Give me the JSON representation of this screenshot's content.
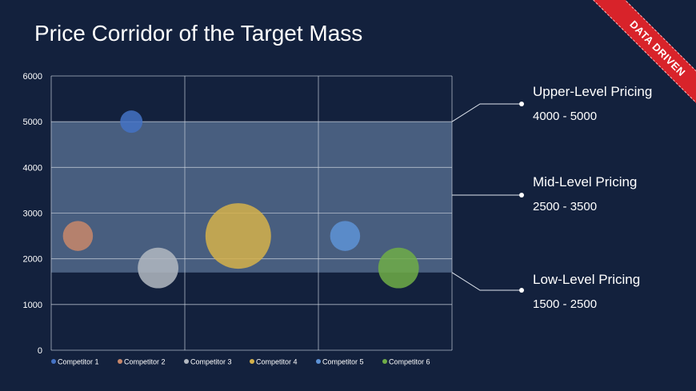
{
  "title": "Price Corridor of the Target Mass",
  "badge": "DATA DRIVEN",
  "colors": {
    "background": "#13213d",
    "band": "#5b7395",
    "ribbon": "#d8232a",
    "grid": "#c9d1dc"
  },
  "bands": [
    {
      "label": "Upper-Level Pricing",
      "range": "4000 - 5000"
    },
    {
      "label": "Mid-Level Pricing",
      "range": "2500 - 3500"
    },
    {
      "label": "Low-Level Pricing",
      "range": "1500 - 2500"
    }
  ],
  "chart_data": {
    "type": "bubble",
    "title": "",
    "xlabel": "",
    "ylabel": "",
    "xlim": [
      0,
      3
    ],
    "ylim": [
      0,
      6000
    ],
    "yticks": [
      0,
      1000,
      2000,
      3000,
      4000,
      5000,
      6000
    ],
    "grid": true,
    "legend": "bottom",
    "highlight_band": [
      1700,
      5000
    ],
    "series": [
      {
        "name": "Competitor 1",
        "x": 0.6,
        "y": 5000,
        "size": 1,
        "color": "#4472c4"
      },
      {
        "name": "Competitor 2",
        "x": 0.2,
        "y": 2500,
        "size": 1.8,
        "color": "#c9876a"
      },
      {
        "name": "Competitor 3",
        "x": 0.8,
        "y": 1800,
        "size": 3.3,
        "color": "#b3b8c1"
      },
      {
        "name": "Competitor 4",
        "x": 1.4,
        "y": 2500,
        "size": 8.6,
        "color": "#d6b24a"
      },
      {
        "name": "Competitor 5",
        "x": 2.2,
        "y": 2500,
        "size": 1.8,
        "color": "#5e93d6"
      },
      {
        "name": "Competitor 6",
        "x": 2.6,
        "y": 1800,
        "size": 3.3,
        "color": "#70ad47"
      }
    ]
  }
}
